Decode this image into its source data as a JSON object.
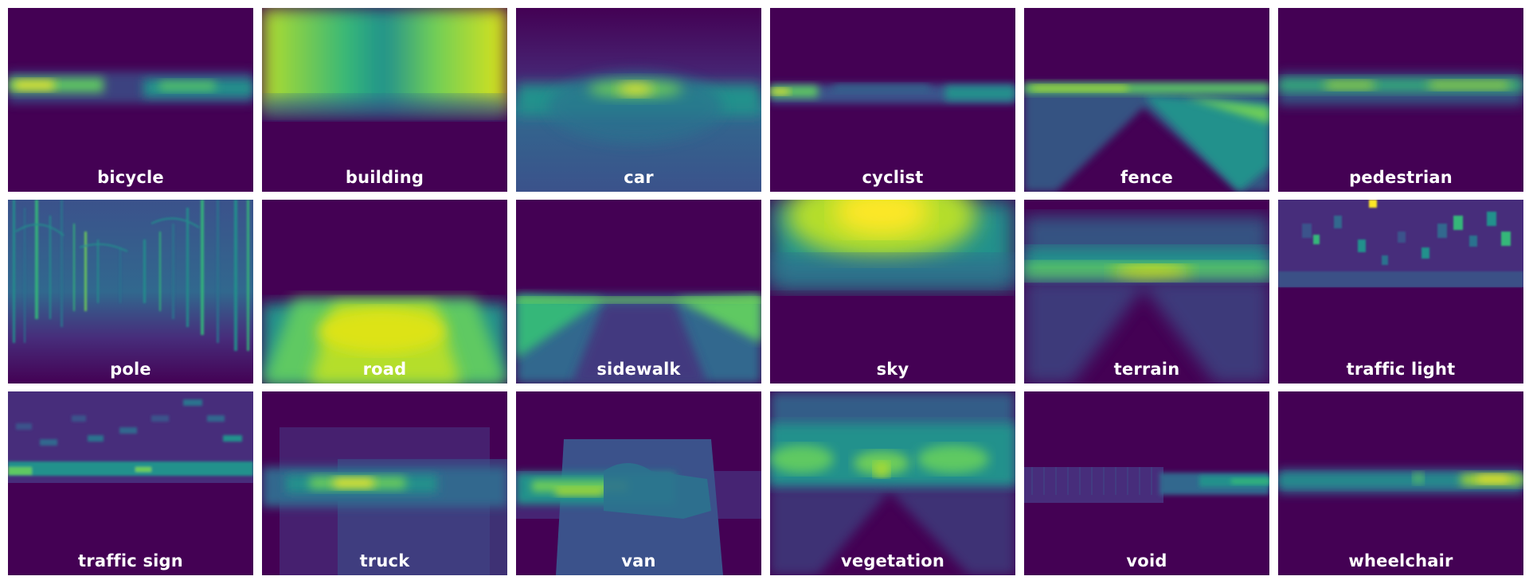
{
  "tiles": [
    {
      "label": "bicycle"
    },
    {
      "label": "building"
    },
    {
      "label": "car"
    },
    {
      "label": "cyclist"
    },
    {
      "label": "fence"
    },
    {
      "label": "pedestrian"
    },
    {
      "label": "pole"
    },
    {
      "label": "road"
    },
    {
      "label": "sidewalk"
    },
    {
      "label": "sky"
    },
    {
      "label": "terrain"
    },
    {
      "label": "traffic light"
    },
    {
      "label": "traffic sign"
    },
    {
      "label": "truck"
    },
    {
      "label": "van"
    },
    {
      "label": "vegetation"
    },
    {
      "label": "void"
    },
    {
      "label": "wheelchair"
    }
  ],
  "colormap": {
    "low": "#440154",
    "mid": "#21918c",
    "high": "#fde725"
  }
}
